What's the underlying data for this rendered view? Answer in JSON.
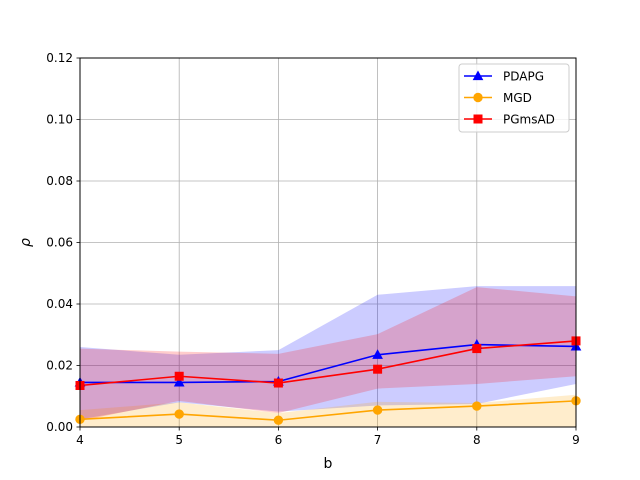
{
  "chart_data": {
    "type": "line",
    "title": "",
    "xlabel": "b",
    "ylabel": "ρ",
    "xlim": [
      4,
      9
    ],
    "ylim": [
      0,
      0.12
    ],
    "x": [
      4,
      5,
      6,
      7,
      8,
      9
    ],
    "x_ticks": [
      "4",
      "5",
      "6",
      "7",
      "8",
      "9"
    ],
    "y_ticks": [
      "0.00",
      "0.02",
      "0.04",
      "0.06",
      "0.08",
      "0.10",
      "0.12"
    ],
    "grid": true,
    "legend_position": "top-right",
    "series": [
      {
        "name": "PDAPG",
        "color": "#0000ff",
        "marker": "triangle",
        "values": [
          0.0145,
          0.0145,
          0.0148,
          0.0235,
          0.0268,
          0.0262
        ],
        "band_lower": [
          0.0025,
          0.008,
          0.005,
          0.007,
          0.0075,
          0.014
        ],
        "band_upper": [
          0.026,
          0.0235,
          0.025,
          0.043,
          0.0458,
          0.0458
        ]
      },
      {
        "name": "MGD",
        "color": "#ffa500",
        "marker": "circle",
        "values": [
          0.0025,
          0.0042,
          0.0022,
          0.0055,
          0.0068,
          0.0085
        ],
        "band_lower": [
          0.0,
          0.0,
          0.0,
          0.0,
          0.0,
          0.0
        ],
        "band_upper": [
          0.0055,
          0.008,
          0.0045,
          0.0082,
          0.0078,
          0.0105
        ]
      },
      {
        "name": "PGmsAD",
        "color": "#ff0000",
        "marker": "square",
        "values": [
          0.0135,
          0.0165,
          0.0143,
          0.0188,
          0.0255,
          0.028
        ],
        "band_lower": [
          0.002,
          0.0085,
          0.0045,
          0.0125,
          0.014,
          0.0165
        ],
        "band_upper": [
          0.0255,
          0.0245,
          0.0238,
          0.0302,
          0.0455,
          0.0425
        ]
      }
    ]
  }
}
